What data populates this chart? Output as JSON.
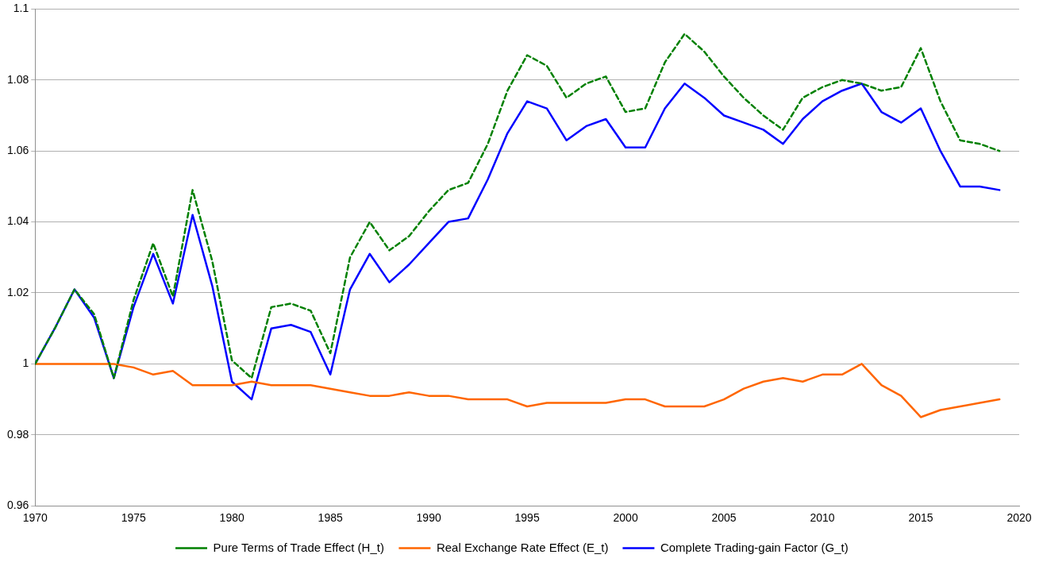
{
  "chart_data": {
    "type": "line",
    "x": [
      1970,
      1971,
      1972,
      1973,
      1974,
      1975,
      1976,
      1977,
      1978,
      1979,
      1980,
      1981,
      1982,
      1983,
      1984,
      1985,
      1986,
      1987,
      1988,
      1989,
      1990,
      1991,
      1992,
      1993,
      1994,
      1995,
      1996,
      1997,
      1998,
      1999,
      2000,
      2001,
      2002,
      2003,
      2004,
      2005,
      2006,
      2007,
      2008,
      2009,
      2010,
      2011,
      2012,
      2013,
      2014,
      2015,
      2016,
      2017,
      2018,
      2019
    ],
    "series": [
      {
        "name": "Pure Terms of Trade Effect (H_t)",
        "color": "#008000",
        "line_style": "dashed",
        "values": [
          1.0,
          1.01,
          1.021,
          1.014,
          0.996,
          1.018,
          1.034,
          1.019,
          1.049,
          1.029,
          1.001,
          0.996,
          1.016,
          1.017,
          1.015,
          1.003,
          1.03,
          1.04,
          1.032,
          1.036,
          1.043,
          1.049,
          1.051,
          1.062,
          1.077,
          1.087,
          1.084,
          1.075,
          1.079,
          1.081,
          1.071,
          1.072,
          1.085,
          1.093,
          1.088,
          1.081,
          1.075,
          1.07,
          1.066,
          1.075,
          1.078,
          1.08,
          1.079,
          1.077,
          1.078,
          1.089,
          1.074,
          1.063,
          1.062,
          1.06
        ]
      },
      {
        "name": "Real Exchange Rate Effect (E_t)",
        "color": "#ff6600",
        "line_style": "solid",
        "values": [
          1.0,
          1.0,
          1.0,
          1.0,
          1.0,
          0.999,
          0.997,
          0.998,
          0.994,
          0.994,
          0.994,
          0.995,
          0.994,
          0.994,
          0.994,
          0.993,
          0.992,
          0.991,
          0.991,
          0.992,
          0.991,
          0.991,
          0.99,
          0.99,
          0.99,
          0.988,
          0.989,
          0.989,
          0.989,
          0.989,
          0.99,
          0.99,
          0.988,
          0.988,
          0.988,
          0.99,
          0.993,
          0.995,
          0.996,
          0.995,
          0.997,
          0.997,
          1.0,
          0.994,
          0.991,
          0.985,
          0.987,
          0.988,
          0.989,
          0.99
        ]
      },
      {
        "name": "Complete Trading-gain Factor (G_t)",
        "color": "#0000ff",
        "line_style": "solid",
        "values": [
          1.0,
          1.01,
          1.021,
          1.013,
          0.996,
          1.016,
          1.031,
          1.017,
          1.042,
          1.022,
          0.995,
          0.99,
          1.01,
          1.011,
          1.009,
          0.997,
          1.021,
          1.031,
          1.023,
          1.028,
          1.034,
          1.04,
          1.041,
          1.052,
          1.065,
          1.074,
          1.072,
          1.063,
          1.067,
          1.069,
          1.061,
          1.061,
          1.072,
          1.079,
          1.075,
          1.07,
          1.068,
          1.066,
          1.062,
          1.069,
          1.074,
          1.077,
          1.079,
          1.071,
          1.068,
          1.072,
          1.06,
          1.05,
          1.05,
          1.049
        ]
      }
    ],
    "xlim": [
      1970,
      2020
    ],
    "xticks": [
      1970,
      1975,
      1980,
      1985,
      1990,
      1995,
      2000,
      2005,
      2010,
      2015,
      2020
    ],
    "ylim": [
      0.96,
      1.1
    ],
    "yticks": [
      0.96,
      0.98,
      1,
      1.02,
      1.04,
      1.06,
      1.08,
      1.1
    ],
    "grid": "y",
    "legend": "bottom",
    "marker": "none"
  }
}
